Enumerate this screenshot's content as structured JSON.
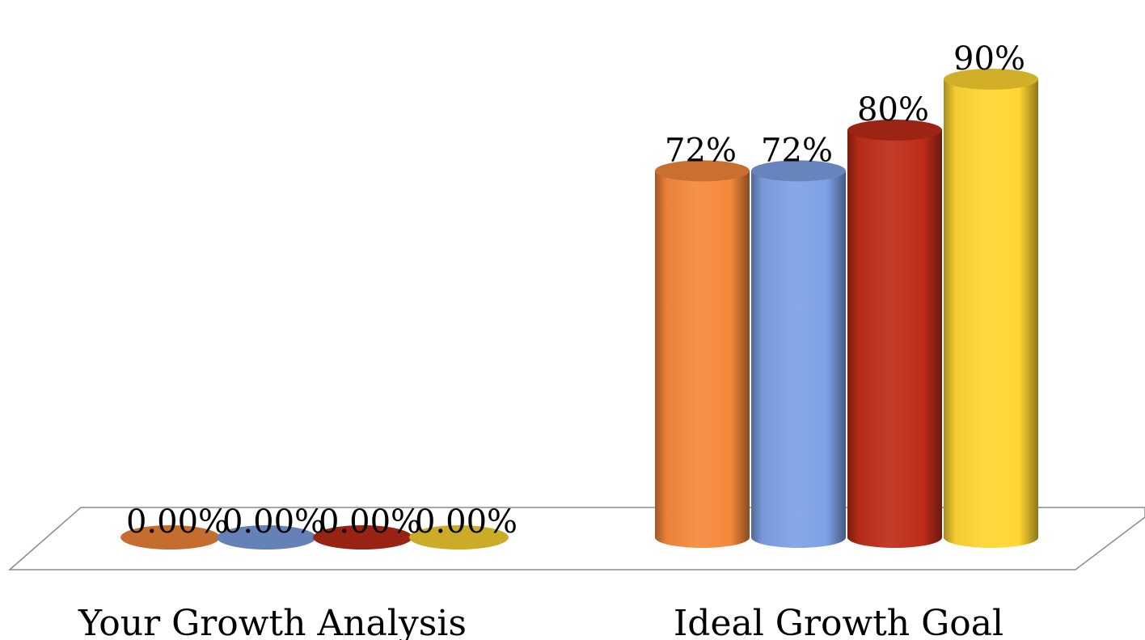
{
  "chart_data": {
    "type": "bar",
    "style": "3d-cylinder",
    "categories": [
      "Your Growth Analysis",
      "Ideal Growth Goal"
    ],
    "series": [
      {
        "values": [
          0,
          0.72
        ],
        "labels": [
          "0.00%",
          "72%"
        ],
        "color": "#F5883A"
      },
      {
        "values": [
          0,
          0.72
        ],
        "labels": [
          "0.00%",
          "72%"
        ],
        "color": "#7DA1E6"
      },
      {
        "values": [
          0,
          0.8
        ],
        "labels": [
          "0.00%",
          "80%"
        ],
        "color": "#BE2C18"
      },
      {
        "values": [
          0,
          0.9
        ],
        "labels": [
          "0.00%",
          "90%"
        ],
        "color": "#FFD632"
      }
    ],
    "ylim": [
      0,
      1
    ],
    "grid": false,
    "legend": "none",
    "title": "",
    "xlabel": "",
    "ylabel": ""
  }
}
